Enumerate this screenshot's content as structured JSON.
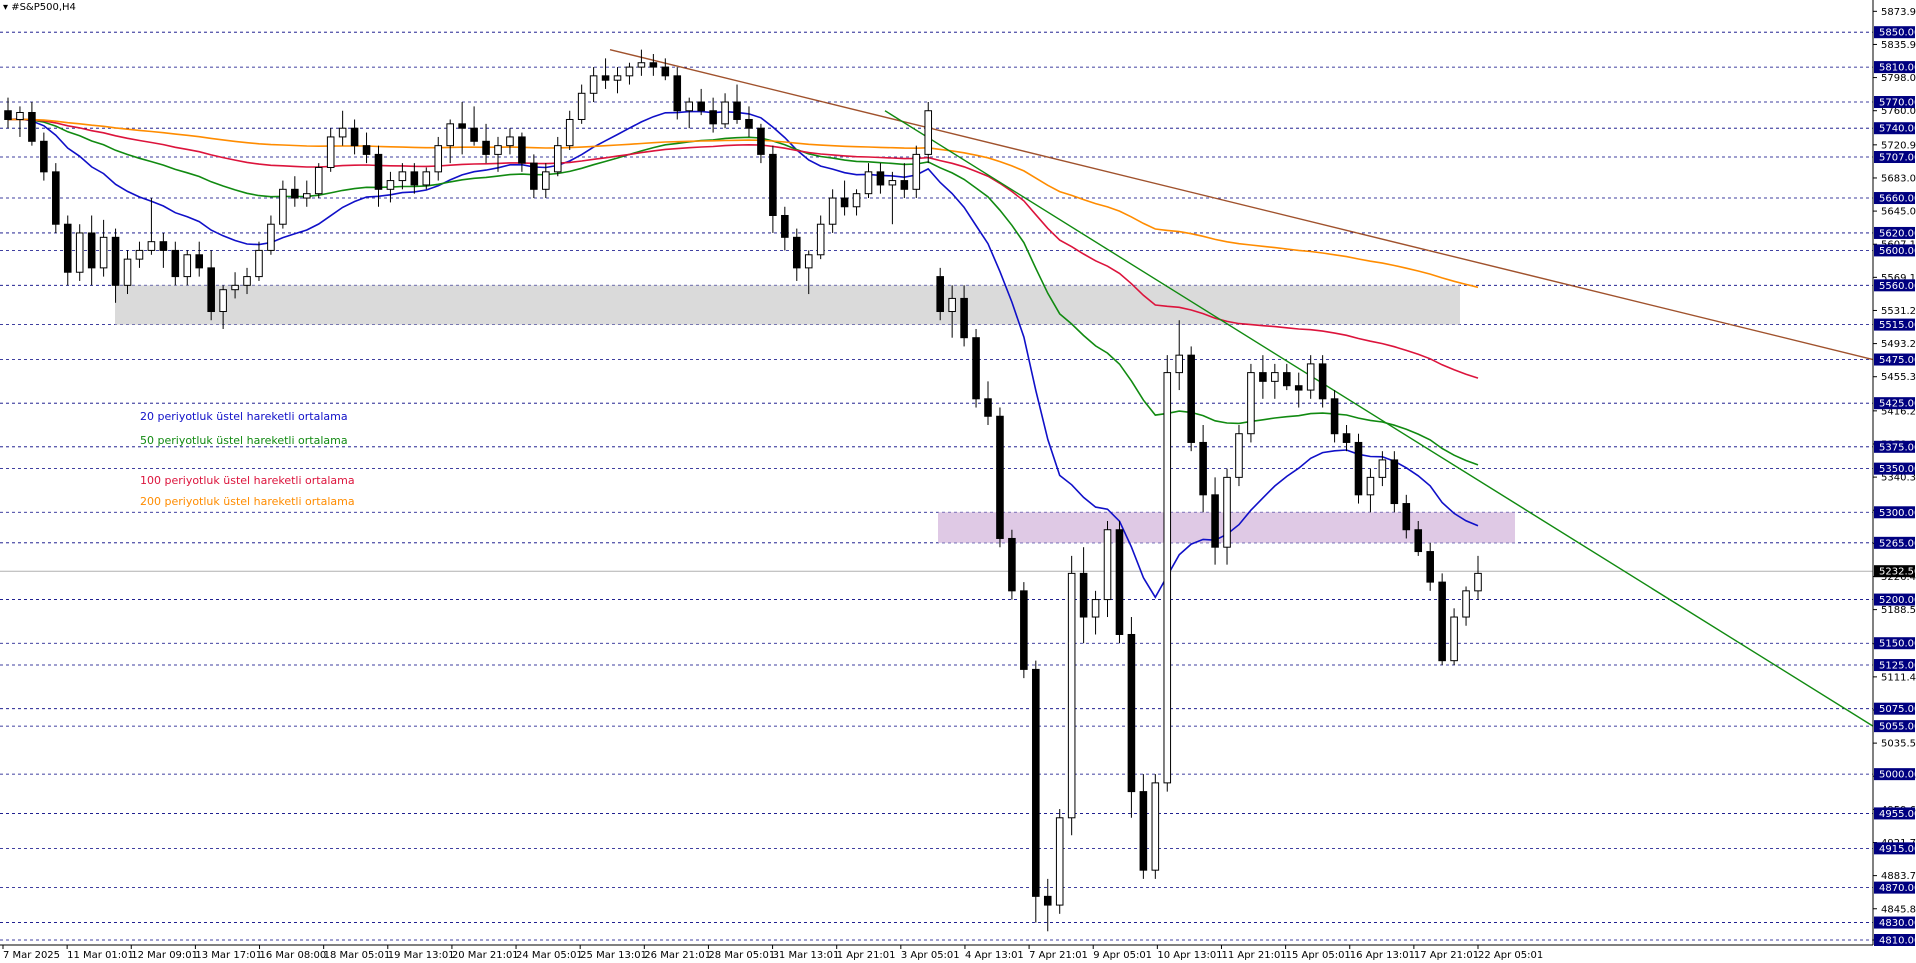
{
  "chart_data": {
    "type": "candlestick",
    "title": "▾ #S&P500,H4",
    "colors": {
      "bull_body": "#ffffff",
      "bear_body": "#000000",
      "ema20": "#1010c8",
      "ema50": "#118a11",
      "ema100": "#dc143c",
      "ema200": "#ff8c00",
      "trend_brown": "#a0522d",
      "trend_green": "#118a11",
      "zone_gray": "#d3d3d3",
      "zone_purple": "#d9bfe0",
      "hline_level": "#000080",
      "hline_current": "#b0b0b0"
    },
    "legend": [
      {
        "label": "20 periyotluk üstel hareketli ortalama",
        "color": "#1010c8"
      },
      {
        "label": "50 periyotluk üstel hareketli ortalama",
        "color": "#118a11"
      },
      {
        "label": "100 periyotluk üstel hareketli ortalama",
        "color": "#dc143c"
      },
      {
        "label": "200 periyotluk üstel hareketli ortalama",
        "color": "#ff8c00"
      }
    ],
    "y_axis": {
      "ylim": [
        4810,
        5880
      ],
      "tick_labels": [
        "5873.90",
        "5835.95",
        "5798.00",
        "5760.05",
        "5720.95",
        "5683.00",
        "5645.05",
        "5607.10",
        "5569.15",
        "5531.20",
        "5493.25",
        "5455.30",
        "5416.20",
        "5378.25",
        "5340.30",
        "5302.35",
        "5264.40",
        "5226.45",
        "5188.50",
        "5149.40",
        "5111.45",
        "5073.50",
        "5035.55",
        "4997.60",
        "4959.65",
        "4921.70",
        "4883.75",
        "4845.80",
        "4810.00"
      ],
      "level_lines": [
        "5850.00",
        "5810.00",
        "5770.00",
        "5740.00",
        "5707.00",
        "5660.00",
        "5620.00",
        "5600.00",
        "5560.00",
        "5515.00",
        "5475.00",
        "5425.00",
        "5375.00",
        "5350.00",
        "5300.00",
        "5265.00",
        "5200.00",
        "5150.00",
        "5125.00",
        "5075.00",
        "5055.00",
        "5000.00",
        "4955.00",
        "4915.00",
        "4870.00",
        "4830.00",
        "4810.00"
      ],
      "current_price": "5232.50"
    },
    "x_axis": {
      "tick_labels": [
        "7 Mar 2025",
        "11 Mar 01:01",
        "12 Mar 09:01",
        "13 Mar 17:01",
        "16 Mar 08:00",
        "18 Mar 05:01",
        "19 Mar 13:01",
        "20 Mar 21:01",
        "24 Mar 05:01",
        "25 Mar 13:01",
        "26 Mar 21:01",
        "28 Mar 05:01",
        "31 Mar 13:01",
        "1 Apr 21:01",
        "3 Apr 05:01",
        "4 Apr 13:01",
        "7 Apr 21:01",
        "9 Apr 05:01",
        "10 Apr 13:01",
        "11 Apr 21:01",
        "15 Apr 05:01",
        "16 Apr 13:01",
        "17 Apr 21:01",
        "22 Apr 05:01"
      ]
    },
    "candles": [
      [
        5760,
        5775,
        5740,
        5750
      ],
      [
        5750,
        5765,
        5730,
        5758
      ],
      [
        5758,
        5770,
        5720,
        5725
      ],
      [
        5725,
        5735,
        5680,
        5690
      ],
      [
        5690,
        5700,
        5620,
        5630
      ],
      [
        5630,
        5640,
        5560,
        5575
      ],
      [
        5575,
        5630,
        5565,
        5620
      ],
      [
        5620,
        5640,
        5560,
        5580
      ],
      [
        5580,
        5635,
        5570,
        5615
      ],
      [
        5615,
        5625,
        5540,
        5560
      ],
      [
        5560,
        5600,
        5550,
        5590
      ],
      [
        5590,
        5610,
        5580,
        5600
      ],
      [
        5600,
        5660,
        5595,
        5610
      ],
      [
        5610,
        5620,
        5580,
        5600
      ],
      [
        5600,
        5610,
        5560,
        5570
      ],
      [
        5570,
        5600,
        5560,
        5595
      ],
      [
        5595,
        5610,
        5570,
        5580
      ],
      [
        5580,
        5600,
        5520,
        5530
      ],
      [
        5530,
        5560,
        5510,
        5555
      ],
      [
        5555,
        5575,
        5545,
        5560
      ],
      [
        5560,
        5580,
        5550,
        5570
      ],
      [
        5570,
        5610,
        5565,
        5600
      ],
      [
        5600,
        5640,
        5595,
        5630
      ],
      [
        5630,
        5680,
        5625,
        5670
      ],
      [
        5670,
        5685,
        5650,
        5660
      ],
      [
        5660,
        5680,
        5650,
        5665
      ],
      [
        5665,
        5700,
        5660,
        5695
      ],
      [
        5695,
        5740,
        5690,
        5730
      ],
      [
        5730,
        5760,
        5720,
        5740
      ],
      [
        5740,
        5750,
        5710,
        5720
      ],
      [
        5720,
        5735,
        5700,
        5710
      ],
      [
        5710,
        5720,
        5650,
        5670
      ],
      [
        5670,
        5690,
        5655,
        5680
      ],
      [
        5680,
        5700,
        5670,
        5690
      ],
      [
        5690,
        5700,
        5665,
        5675
      ],
      [
        5675,
        5695,
        5670,
        5690
      ],
      [
        5690,
        5730,
        5680,
        5720
      ],
      [
        5720,
        5750,
        5700,
        5745
      ],
      [
        5745,
        5770,
        5710,
        5740
      ],
      [
        5740,
        5765,
        5720,
        5725
      ],
      [
        5725,
        5745,
        5700,
        5710
      ],
      [
        5710,
        5730,
        5690,
        5720
      ],
      [
        5720,
        5740,
        5710,
        5730
      ],
      [
        5730,
        5735,
        5690,
        5700
      ],
      [
        5700,
        5710,
        5660,
        5670
      ],
      [
        5670,
        5700,
        5660,
        5690
      ],
      [
        5690,
        5730,
        5685,
        5720
      ],
      [
        5720,
        5760,
        5715,
        5750
      ],
      [
        5750,
        5790,
        5745,
        5780
      ],
      [
        5780,
        5810,
        5770,
        5800
      ],
      [
        5800,
        5820,
        5785,
        5795
      ],
      [
        5795,
        5810,
        5780,
        5800
      ],
      [
        5800,
        5815,
        5790,
        5810
      ],
      [
        5810,
        5830,
        5800,
        5815
      ],
      [
        5815,
        5825,
        5800,
        5810
      ],
      [
        5810,
        5820,
        5795,
        5800
      ],
      [
        5800,
        5810,
        5750,
        5760
      ],
      [
        5760,
        5775,
        5740,
        5770
      ],
      [
        5770,
        5785,
        5755,
        5760
      ],
      [
        5760,
        5775,
        5735,
        5745
      ],
      [
        5745,
        5780,
        5740,
        5770
      ],
      [
        5770,
        5790,
        5745,
        5750
      ],
      [
        5750,
        5765,
        5730,
        5740
      ],
      [
        5740,
        5745,
        5700,
        5710
      ],
      [
        5710,
        5720,
        5620,
        5640
      ],
      [
        5640,
        5650,
        5600,
        5615
      ],
      [
        5615,
        5625,
        5565,
        5580
      ],
      [
        5580,
        5600,
        5550,
        5595
      ],
      [
        5595,
        5640,
        5590,
        5630
      ],
      [
        5630,
        5670,
        5620,
        5660
      ],
      [
        5660,
        5680,
        5640,
        5650
      ],
      [
        5650,
        5670,
        5640,
        5665
      ],
      [
        5665,
        5700,
        5660,
        5690
      ],
      [
        5690,
        5700,
        5665,
        5675
      ],
      [
        5675,
        5690,
        5630,
        5680
      ],
      [
        5680,
        5700,
        5660,
        5670
      ],
      [
        5670,
        5720,
        5660,
        5710
      ],
      [
        5710,
        5770,
        5700,
        5760
      ],
      [
        5570,
        5580,
        5520,
        5530
      ],
      [
        5530,
        5560,
        5500,
        5545
      ],
      [
        5545,
        5560,
        5490,
        5500
      ],
      [
        5500,
        5510,
        5420,
        5430
      ],
      [
        5430,
        5450,
        5400,
        5410
      ],
      [
        5410,
        5420,
        5260,
        5270
      ],
      [
        5270,
        5280,
        5200,
        5210
      ],
      [
        5210,
        5220,
        5110,
        5120
      ],
      [
        5120,
        5130,
        4830,
        4860
      ],
      [
        4860,
        4880,
        4820,
        4850
      ],
      [
        4850,
        4960,
        4840,
        4950
      ],
      [
        4950,
        5250,
        4930,
        5230
      ],
      [
        5230,
        5260,
        5150,
        5180
      ],
      [
        5180,
        5210,
        5160,
        5200
      ],
      [
        5200,
        5290,
        5180,
        5280
      ],
      [
        5280,
        5290,
        5150,
        5160
      ],
      [
        5160,
        5180,
        4950,
        4980
      ],
      [
        4980,
        5000,
        4880,
        4890
      ],
      [
        4890,
        5000,
        4880,
        4990
      ],
      [
        4990,
        5480,
        4980,
        5460
      ],
      [
        5460,
        5520,
        5440,
        5480
      ],
      [
        5480,
        5490,
        5370,
        5380
      ],
      [
        5380,
        5400,
        5300,
        5320
      ],
      [
        5320,
        5340,
        5240,
        5260
      ],
      [
        5260,
        5350,
        5240,
        5340
      ],
      [
        5340,
        5400,
        5330,
        5390
      ],
      [
        5390,
        5470,
        5380,
        5460
      ],
      [
        5460,
        5480,
        5430,
        5450
      ],
      [
        5450,
        5470,
        5430,
        5460
      ],
      [
        5460,
        5470,
        5440,
        5445
      ],
      [
        5445,
        5460,
        5420,
        5440
      ],
      [
        5440,
        5480,
        5430,
        5470
      ],
      [
        5470,
        5480,
        5420,
        5430
      ],
      [
        5430,
        5440,
        5380,
        5390
      ],
      [
        5390,
        5400,
        5370,
        5380
      ],
      [
        5380,
        5390,
        5310,
        5320
      ],
      [
        5320,
        5350,
        5300,
        5340
      ],
      [
        5340,
        5370,
        5330,
        5360
      ],
      [
        5360,
        5370,
        5300,
        5310
      ],
      [
        5310,
        5320,
        5270,
        5280
      ],
      [
        5280,
        5290,
        5250,
        5255
      ],
      [
        5255,
        5265,
        5210,
        5220
      ],
      [
        5220,
        5230,
        5125,
        5130
      ],
      [
        5130,
        5190,
        5125,
        5180
      ],
      [
        5180,
        5215,
        5170,
        5210
      ],
      [
        5210,
        5250,
        5200,
        5230
      ]
    ]
  }
}
